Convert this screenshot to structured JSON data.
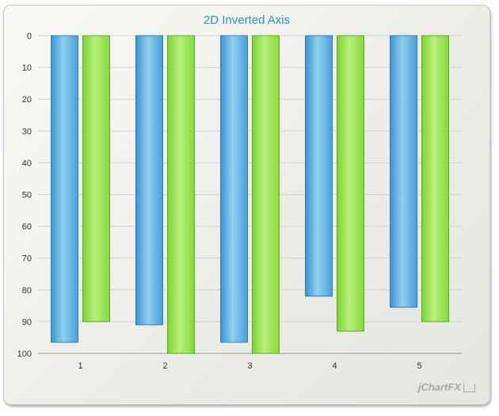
{
  "chart_data": {
    "type": "bar",
    "title": "2D Inverted Axis",
    "categories": [
      "1",
      "2",
      "3",
      "4",
      "5"
    ],
    "series": [
      {
        "values": [
          96.5,
          91,
          96.5,
          82,
          85.5
        ],
        "color": "#5aaee0"
      },
      {
        "values": [
          90,
          100,
          100,
          93,
          90
        ],
        "color": "#8fe04a"
      }
    ],
    "y_inverted": true,
    "ylim": [
      0,
      100
    ],
    "yticks": [
      "0",
      "10",
      "20",
      "30",
      "40",
      "50",
      "60",
      "70",
      "80",
      "90",
      "100"
    ],
    "grid": true
  },
  "branding": {
    "text": "jChartFX"
  }
}
